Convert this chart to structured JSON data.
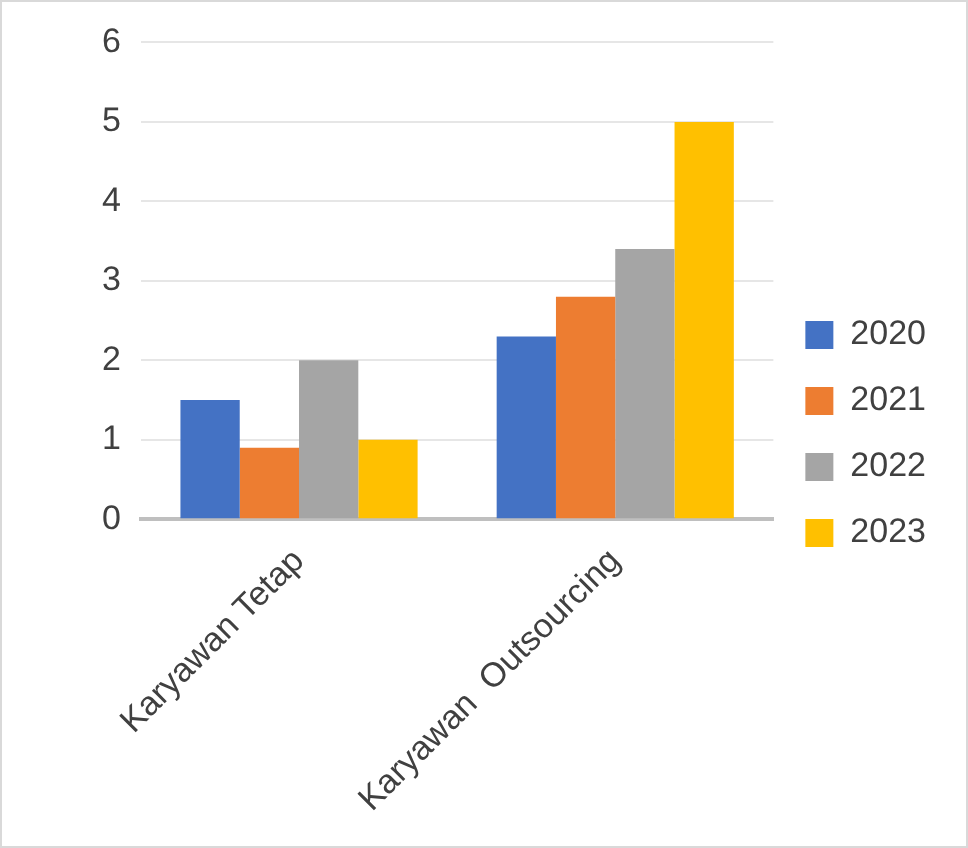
{
  "chart_data": {
    "type": "bar",
    "categories": [
      "Karyawan Tetap",
      "Karyawan  Outsourcing"
    ],
    "series": [
      {
        "name": "2020",
        "color": "#4472c4",
        "values": [
          1.5,
          2.3
        ]
      },
      {
        "name": "2021",
        "color": "#ed7d31",
        "values": [
          0.9,
          2.8
        ]
      },
      {
        "name": "2022",
        "color": "#a5a5a5",
        "values": [
          2.0,
          3.4
        ]
      },
      {
        "name": "2023",
        "color": "#ffc000",
        "values": [
          1.0,
          5.0
        ]
      }
    ],
    "ylim": [
      0,
      6
    ],
    "yticks": [
      0,
      1,
      2,
      3,
      4,
      5,
      6
    ],
    "grid": "y",
    "legend": "right"
  }
}
